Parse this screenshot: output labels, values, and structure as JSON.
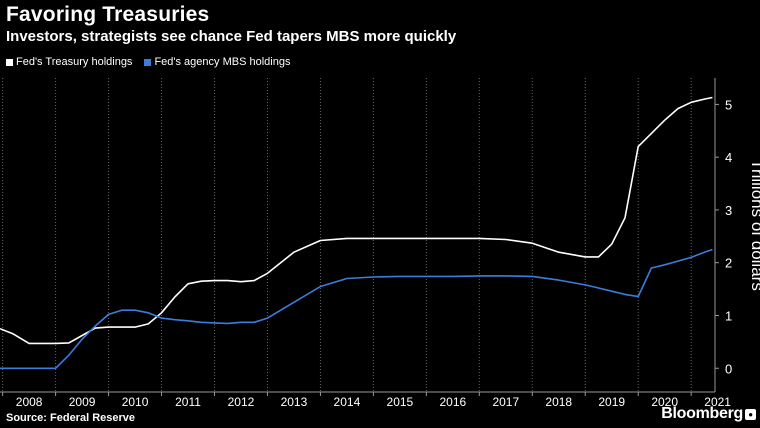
{
  "header": {
    "title": "Favoring Treasuries",
    "subtitle": "Investors, strategists see chance Fed tapers MBS more quickly"
  },
  "footer": {
    "source": "Source: Federal Reserve",
    "brand": "Bloomberg"
  },
  "colors": {
    "background": "#000000",
    "treasury": "#ffffff",
    "mbs": "#3b7ddd",
    "grid": "#666666"
  },
  "chart_data": {
    "type": "line",
    "xlabel": "",
    "ylabel": "Trillions of dollars",
    "xlim": [
      2007.95,
      2021.45
    ],
    "ylim": [
      -0.45,
      5.5
    ],
    "yticks": [
      0,
      1,
      2,
      3,
      4,
      5
    ],
    "xticks": [
      "2008",
      "2009",
      "2010",
      "2011",
      "2012",
      "2013",
      "2014",
      "2015",
      "2016",
      "2017",
      "2018",
      "2019",
      "2020",
      "2021"
    ],
    "grid": true,
    "legend_position": "top-left",
    "series": [
      {
        "name": "Fed's Treasury holdings",
        "color": "#ffffff",
        "x": [
          2007.95,
          2008.2,
          2008.5,
          2008.75,
          2009.0,
          2009.25,
          2009.5,
          2009.75,
          2010.0,
          2010.25,
          2010.5,
          2010.75,
          2011.0,
          2011.25,
          2011.5,
          2011.75,
          2012.0,
          2012.25,
          2012.5,
          2012.75,
          2013.0,
          2013.5,
          2014.0,
          2014.5,
          2015.0,
          2015.5,
          2016.0,
          2016.5,
          2017.0,
          2017.5,
          2018.0,
          2018.5,
          2019.0,
          2019.25,
          2019.5,
          2019.75,
          2020.0,
          2020.25,
          2020.5,
          2020.75,
          2021.0,
          2021.25,
          2021.4
        ],
        "y": [
          0.75,
          0.65,
          0.47,
          0.47,
          0.47,
          0.48,
          0.62,
          0.76,
          0.78,
          0.78,
          0.78,
          0.84,
          1.05,
          1.35,
          1.6,
          1.65,
          1.66,
          1.66,
          1.64,
          1.66,
          1.8,
          2.2,
          2.42,
          2.46,
          2.46,
          2.46,
          2.46,
          2.46,
          2.46,
          2.44,
          2.37,
          2.2,
          2.11,
          2.11,
          2.35,
          2.85,
          4.2,
          4.45,
          4.7,
          4.92,
          5.04,
          5.1,
          5.13
        ]
      },
      {
        "name": "Fed's agency MBS holdings",
        "color": "#3b7ddd",
        "x": [
          2007.95,
          2008.25,
          2008.5,
          2008.75,
          2009.0,
          2009.25,
          2009.5,
          2009.75,
          2010.0,
          2010.25,
          2010.5,
          2010.75,
          2011.0,
          2011.25,
          2011.5,
          2011.75,
          2012.0,
          2012.25,
          2012.5,
          2012.75,
          2013.0,
          2013.5,
          2014.0,
          2014.5,
          2015.0,
          2015.5,
          2016.0,
          2016.5,
          2017.0,
          2017.5,
          2018.0,
          2018.5,
          2019.0,
          2019.25,
          2019.5,
          2019.75,
          2020.0,
          2020.25,
          2020.5,
          2020.75,
          2021.0,
          2021.25,
          2021.4
        ],
        "y": [
          0.0,
          0.0,
          0.0,
          0.0,
          0.0,
          0.25,
          0.55,
          0.8,
          1.02,
          1.1,
          1.1,
          1.05,
          0.95,
          0.92,
          0.9,
          0.87,
          0.86,
          0.85,
          0.87,
          0.87,
          0.95,
          1.25,
          1.55,
          1.7,
          1.73,
          1.74,
          1.74,
          1.74,
          1.75,
          1.75,
          1.74,
          1.67,
          1.58,
          1.52,
          1.46,
          1.4,
          1.36,
          1.9,
          1.96,
          2.03,
          2.1,
          2.2,
          2.25
        ]
      }
    ]
  }
}
